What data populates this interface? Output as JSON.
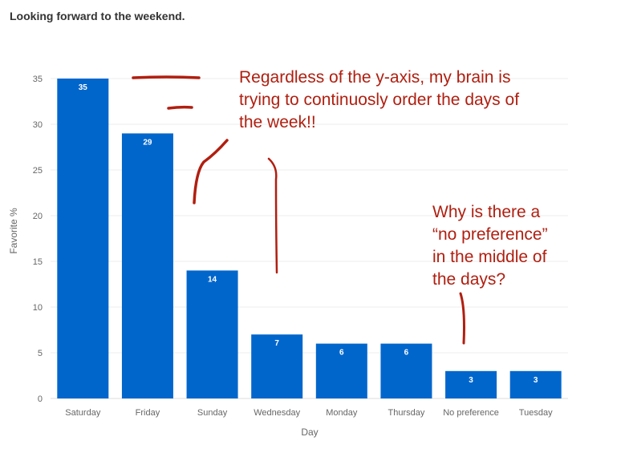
{
  "title": "Looking forward to the weekend.",
  "chart_data": {
    "type": "bar",
    "categories": [
      "Saturday",
      "Friday",
      "Sunday",
      "Wednesday",
      "Monday",
      "Thursday",
      "No preference",
      "Tuesday"
    ],
    "values": [
      35,
      29,
      14,
      7,
      6,
      6,
      3,
      3
    ],
    "xlabel": "Day",
    "ylabel": "Favorite %",
    "ylim": [
      0,
      35
    ],
    "yticks": [
      0,
      5,
      10,
      15,
      20,
      25,
      30,
      35
    ],
    "grid": true,
    "bar_color": "#0066cc"
  },
  "annotations": {
    "note1": "Regardless of the y-axis, my brain is\ntrying to continuosly order the days of\nthe week!!",
    "note2": "Why is there a\n“no preference”\nin the middle of\nthe days?",
    "color": "#b01f10"
  }
}
